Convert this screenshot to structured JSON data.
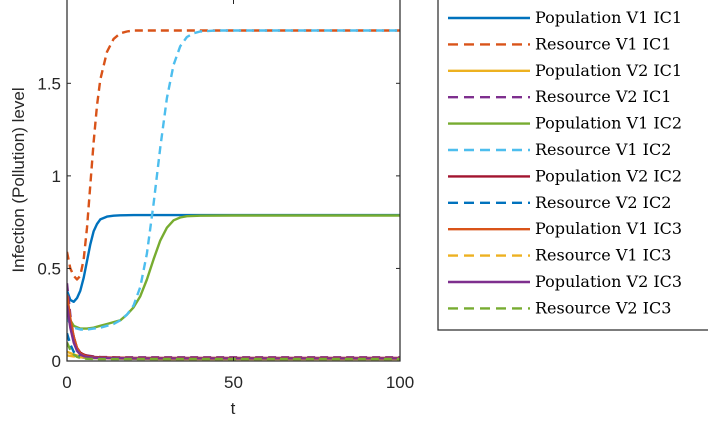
{
  "chart_data": {
    "type": "line",
    "title": "",
    "xlabel": "t",
    "ylabel": "Infection (Pollution) level",
    "xlim": [
      0,
      100
    ],
    "ylim": [
      0,
      1.95
    ],
    "xticks": [
      0,
      50,
      100
    ],
    "xtick_labels": [
      "0",
      "50",
      "100"
    ],
    "yticks": [
      0,
      0.5,
      1,
      1.5
    ],
    "ytick_labels": [
      "0",
      "0.5",
      "1",
      "1.5"
    ],
    "grid": false,
    "legend_position": "outside-right",
    "series": [
      {
        "name": "Population V1 IC1",
        "color": "#0072BD",
        "dash": "solid",
        "x": [
          0,
          1,
          2,
          3,
          4,
          5,
          6,
          7,
          8,
          9,
          10,
          12,
          14,
          16,
          20,
          25,
          30,
          100
        ],
        "y": [
          0.38,
          0.33,
          0.32,
          0.34,
          0.38,
          0.45,
          0.54,
          0.63,
          0.7,
          0.74,
          0.765,
          0.78,
          0.785,
          0.787,
          0.788,
          0.788,
          0.788,
          0.788
        ]
      },
      {
        "name": "Resource V1 IC1",
        "color": "#D95319",
        "dash": "dashed",
        "x": [
          0,
          1,
          2,
          3,
          4,
          5,
          6,
          7,
          8,
          9,
          10,
          12,
          14,
          16,
          18,
          20,
          25,
          30,
          100
        ],
        "y": [
          0.59,
          0.5,
          0.46,
          0.44,
          0.46,
          0.55,
          0.72,
          0.95,
          1.18,
          1.38,
          1.52,
          1.67,
          1.74,
          1.77,
          1.78,
          1.785,
          1.785,
          1.785,
          1.785
        ]
      },
      {
        "name": "Population V2 IC1",
        "color": "#EDB120",
        "dash": "solid",
        "x": [
          0,
          2,
          4,
          6,
          8,
          10,
          15,
          20,
          30,
          50,
          100
        ],
        "y": [
          0.05,
          0.035,
          0.025,
          0.02,
          0.017,
          0.015,
          0.013,
          0.012,
          0.011,
          0.01,
          0.01
        ]
      },
      {
        "name": "Resource V2 IC1",
        "color": "#7E2F8E",
        "dash": "dashed",
        "x": [
          0,
          1,
          2,
          3,
          4,
          5,
          6,
          8,
          10,
          15,
          20,
          30,
          50,
          100
        ],
        "y": [
          0.42,
          0.25,
          0.13,
          0.07,
          0.045,
          0.035,
          0.03,
          0.025,
          0.022,
          0.02,
          0.02,
          0.02,
          0.02,
          0.02
        ]
      },
      {
        "name": "Population V1 IC2",
        "color": "#77AC30",
        "dash": "solid",
        "x": [
          0,
          1,
          2,
          4,
          6,
          8,
          10,
          12,
          14,
          16,
          18,
          20,
          22,
          24,
          26,
          28,
          30,
          32,
          34,
          36,
          40,
          50,
          100
        ],
        "y": [
          0.27,
          0.22,
          0.19,
          0.175,
          0.175,
          0.18,
          0.19,
          0.2,
          0.21,
          0.22,
          0.25,
          0.29,
          0.35,
          0.44,
          0.55,
          0.65,
          0.72,
          0.76,
          0.775,
          0.782,
          0.785,
          0.786,
          0.786
        ]
      },
      {
        "name": "Resource V1 IC2",
        "color": "#4DBEEE",
        "dash": "dashed",
        "x": [
          0,
          1,
          2,
          4,
          6,
          8,
          10,
          12,
          14,
          16,
          18,
          20,
          22,
          24,
          26,
          28,
          30,
          32,
          34,
          36,
          38,
          40,
          45,
          50,
          100
        ],
        "y": [
          0.23,
          0.2,
          0.18,
          0.17,
          0.17,
          0.175,
          0.18,
          0.19,
          0.2,
          0.22,
          0.25,
          0.3,
          0.4,
          0.58,
          0.85,
          1.15,
          1.42,
          1.6,
          1.7,
          1.75,
          1.77,
          1.78,
          1.785,
          1.785,
          1.785
        ]
      },
      {
        "name": "Population V2 IC2",
        "color": "#A2142F",
        "dash": "solid",
        "x": [
          0,
          1,
          2,
          3,
          4,
          5,
          6,
          8,
          10,
          15,
          20,
          30,
          50,
          100
        ],
        "y": [
          0.35,
          0.22,
          0.13,
          0.07,
          0.045,
          0.035,
          0.028,
          0.022,
          0.02,
          0.018,
          0.017,
          0.016,
          0.016,
          0.016
        ]
      },
      {
        "name": "Resource V2 IC2",
        "color": "#0072BD",
        "dash": "dashed",
        "x": [
          0,
          1,
          2,
          3,
          4,
          5,
          6,
          8,
          10,
          15,
          20,
          30,
          50,
          100
        ],
        "y": [
          0.15,
          0.09,
          0.05,
          0.03,
          0.022,
          0.018,
          0.016,
          0.015,
          0.015,
          0.014,
          0.014,
          0.014,
          0.014,
          0.014
        ]
      },
      {
        "name": "Population V1 IC3",
        "color": "#D95319",
        "dash": "solid",
        "x": [
          0,
          1,
          2,
          3,
          4,
          5,
          6,
          8,
          10,
          15,
          20,
          30,
          50,
          100
        ],
        "y": [
          0.36,
          0.23,
          0.13,
          0.07,
          0.04,
          0.03,
          0.025,
          0.02,
          0.018,
          0.016,
          0.015,
          0.015,
          0.015,
          0.015
        ]
      },
      {
        "name": "Resource V1 IC3",
        "color": "#EDB120",
        "dash": "dashed",
        "x": [
          0,
          2,
          4,
          6,
          8,
          10,
          15,
          20,
          30,
          50,
          100
        ],
        "y": [
          0.03,
          0.025,
          0.02,
          0.018,
          0.016,
          0.015,
          0.014,
          0.013,
          0.012,
          0.012,
          0.012
        ]
      },
      {
        "name": "Population V2 IC3",
        "color": "#7E2F8E",
        "dash": "solid",
        "x": [
          0,
          1,
          2,
          3,
          4,
          5,
          6,
          8,
          10,
          15,
          20,
          30,
          50,
          100
        ],
        "y": [
          0.3,
          0.18,
          0.1,
          0.055,
          0.035,
          0.026,
          0.022,
          0.018,
          0.016,
          0.015,
          0.014,
          0.014,
          0.014,
          0.014
        ]
      },
      {
        "name": "Resource V2 IC3",
        "color": "#77AC30",
        "dash": "dashed",
        "x": [
          0,
          1,
          2,
          3,
          4,
          5,
          6,
          8,
          10,
          15,
          20,
          30,
          50,
          100
        ],
        "y": [
          0.1,
          0.06,
          0.035,
          0.022,
          0.017,
          0.014,
          0.012,
          0.011,
          0.01,
          0.01,
          0.01,
          0.01,
          0.01,
          0.01
        ]
      }
    ]
  }
}
